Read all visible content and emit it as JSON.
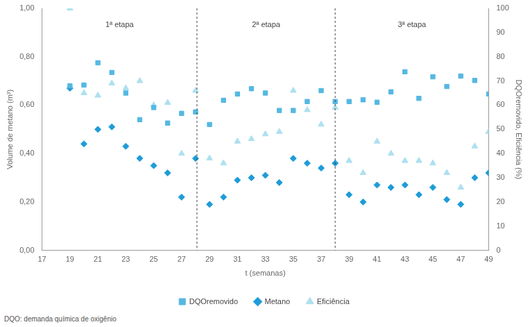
{
  "chart_data": {
    "type": "scatter",
    "x_label": "t (semanas)",
    "y_label": "Volume de metano (m³)",
    "y2_label": "DQOremovido, Eficiência (%)",
    "x": [
      19,
      20,
      21,
      22,
      23,
      24,
      25,
      26,
      27,
      28,
      29,
      30,
      31,
      32,
      33,
      34,
      35,
      36,
      37,
      38,
      39,
      40,
      41,
      42,
      43,
      44,
      45,
      46,
      47,
      48,
      49
    ],
    "series": [
      {
        "name": "DQOremovido",
        "color": "#55b8e2",
        "marker": "square",
        "axis": "y2",
        "values": [
          68,
          68.3,
          77.5,
          73.5,
          65,
          54,
          59,
          52.6,
          56.6,
          57.2,
          52,
          62,
          64.6,
          66.8,
          65,
          57.8,
          57.8,
          61.5,
          66,
          61.5,
          61.5,
          62.2,
          61.2,
          65.5,
          73.8,
          62.8,
          71.7,
          67.7,
          72,
          70.2,
          64.6
        ]
      },
      {
        "name": "Metano",
        "color": "#1e9cd7",
        "marker": "diamond",
        "values": [
          0.67,
          0.44,
          0.5,
          0.51,
          0.43,
          0.38,
          0.35,
          0.32,
          0.22,
          0.38,
          0.19,
          0.22,
          0.29,
          0.3,
          0.31,
          0.28,
          0.38,
          0.36,
          0.34,
          0.36,
          0.23,
          0.2,
          0.27,
          0.26,
          0.27,
          0.23,
          0.26,
          0.21,
          0.19,
          0.3,
          0.32
        ]
      },
      {
        "name": "Eficiência",
        "color": "#aee0f0",
        "marker": "triangle",
        "axis": "y2",
        "values": [
          100,
          65,
          64,
          69,
          67,
          70,
          60,
          61,
          40,
          66,
          38,
          36,
          45,
          46,
          48,
          49,
          66,
          58,
          52,
          59,
          37,
          32,
          45,
          40,
          37,
          37,
          36,
          32,
          26,
          43,
          49
        ]
      }
    ],
    "xlim": [
      17,
      49
    ],
    "xticks": [
      17,
      19,
      21,
      23,
      25,
      27,
      29,
      31,
      33,
      35,
      37,
      39,
      41,
      43,
      45,
      47,
      49
    ],
    "ylim": [
      0,
      1
    ],
    "yticks": [
      {
        "value": 0,
        "label": "0,00"
      },
      {
        "value": 0.2,
        "label": "0,20"
      },
      {
        "value": 0.4,
        "label": "0,40"
      },
      {
        "value": 0.6,
        "label": "0,60"
      },
      {
        "value": 0.8,
        "label": "0,80"
      },
      {
        "value": 1,
        "label": "1,00"
      }
    ],
    "y2lim": [
      0,
      100
    ],
    "y2ticks": [
      0,
      10,
      20,
      30,
      40,
      50,
      60,
      70,
      80,
      90,
      100
    ],
    "grid": false,
    "legend": "bottom",
    "annotations": [
      {
        "text": "1ª etapa",
        "x": [
          17,
          28.1
        ]
      },
      {
        "text": "2ª etapa",
        "x": [
          28.1,
          38
        ]
      },
      {
        "text": "3ª etapa",
        "x": [
          38,
          49
        ]
      }
    ],
    "footnote": "DQO: demanda química de oxigênio"
  }
}
